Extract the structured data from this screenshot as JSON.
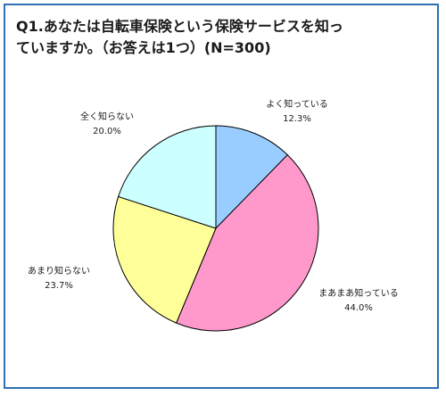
{
  "title": {
    "line1": "Q1.あなたは自転車保険という保険サービスを知っ",
    "line2": "ていますか。（お答えは1つ）(N=300)"
  },
  "chart_data": {
    "type": "pie",
    "title": "Q1.あなたは自転車保険という保険サービスを知っていますか。（お答えは1つ）(N=300)",
    "start_angle_deg": 0,
    "direction": "clockwise",
    "slices": [
      {
        "label": "よく知っている",
        "value": 12.3,
        "value_label": "12.3%",
        "color": "#99ccff"
      },
      {
        "label": "まあまあ知っている",
        "value": 44.0,
        "value_label": "44.0%",
        "color": "#ff99cc"
      },
      {
        "label": "あまり知らない",
        "value": 23.7,
        "value_label": "23.7%",
        "color": "#ffff99"
      },
      {
        "label": "全く知らない",
        "value": 20.0,
        "value_label": "20.0%",
        "color": "#ccffff"
      }
    ]
  }
}
